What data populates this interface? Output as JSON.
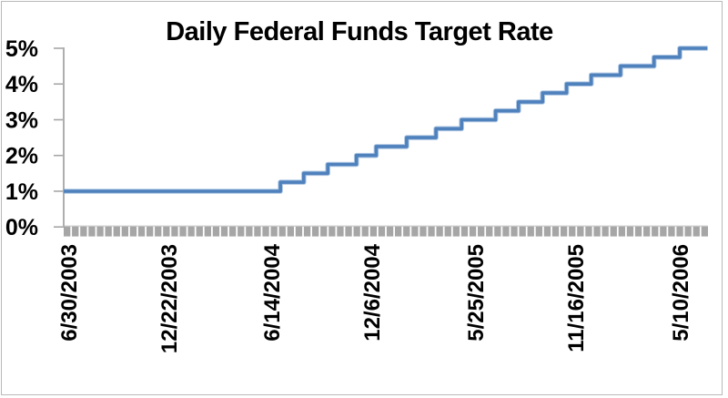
{
  "chart_data": {
    "type": "line",
    "subtype": "step",
    "title": "Daily Federal Funds Target Rate",
    "xlabel": "",
    "ylabel": "",
    "ylim": [
      0,
      5
    ],
    "y_tick_labels": [
      "5%",
      "4%",
      "3%",
      "2%",
      "1%",
      "0%"
    ],
    "y_tick_values": [
      5,
      4,
      3,
      2,
      1,
      0
    ],
    "x_tick_labels": [
      "6/30/2003",
      "12/22/2003",
      "6/14/2004",
      "12/6/2004",
      "5/25/2005",
      "11/16/2005",
      "5/10/2006"
    ],
    "x_range": [
      "6/30/2003",
      "6/28/2006"
    ],
    "gridlines": "none",
    "legend": "none",
    "series": [
      {
        "name": "Daily Federal Funds Target Rate",
        "step_changes": [
          {
            "date": "6/30/2003",
            "rate": 1.0
          },
          {
            "date": "6/30/2004",
            "rate": 1.25
          },
          {
            "date": "8/10/2004",
            "rate": 1.5
          },
          {
            "date": "9/21/2004",
            "rate": 1.75
          },
          {
            "date": "11/10/2004",
            "rate": 2.0
          },
          {
            "date": "12/14/2004",
            "rate": 2.25
          },
          {
            "date": "2/2/2005",
            "rate": 2.5
          },
          {
            "date": "3/22/2005",
            "rate": 2.75
          },
          {
            "date": "5/3/2005",
            "rate": 3.0
          },
          {
            "date": "6/30/2005",
            "rate": 3.25
          },
          {
            "date": "8/9/2005",
            "rate": 3.5
          },
          {
            "date": "9/20/2005",
            "rate": 3.75
          },
          {
            "date": "11/1/2005",
            "rate": 4.0
          },
          {
            "date": "12/13/2005",
            "rate": 4.25
          },
          {
            "date": "1/31/2006",
            "rate": 4.5
          },
          {
            "date": "3/28/2006",
            "rate": 4.75
          },
          {
            "date": "5/10/2006",
            "rate": 5.0
          }
        ]
      }
    ],
    "colors": {
      "line": "#4f81bd",
      "line_edge": "#86abd4",
      "axis": "#a6a6a6",
      "zero_axis_line": "#c6c6c6",
      "tick_band": "#a6a6a6",
      "title": "#000000",
      "background": "#ffffff",
      "border": "#b9b9b9"
    }
  }
}
